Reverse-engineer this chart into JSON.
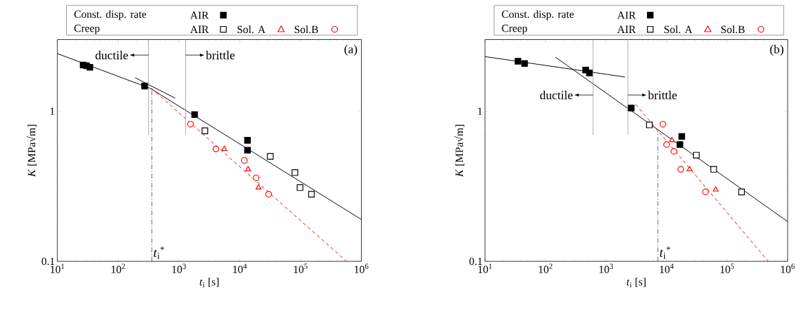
{
  "chart_data": [
    {
      "type": "scatter",
      "xlabel": "*t*$_{i}$ [s]",
      "ylabel": "*K* [MPa√m]",
      "log": "xy",
      "xlim": [
        10,
        1000000
      ],
      "ylim": [
        0.1,
        3
      ],
      "xticks": [
        {
          "value": 10,
          "label": "10$^{1}$"
        },
        {
          "value": 100,
          "label": "10$^{2}$"
        },
        {
          "value": 1000,
          "label": "10$^{3}$"
        },
        {
          "value": 10000,
          "label": "10$^{4}$"
        },
        {
          "value": 100000,
          "label": "10$^{5}$"
        },
        {
          "value": 1000000,
          "label": "10$^{6}$"
        }
      ],
      "yticks": [
        0.1,
        1
      ],
      "legend": "top",
      "annotations": [
        "Const. disp. rate",
        "Creep",
        "(a)"
      ],
      "ref_lines": [
        {
          "axis": "x",
          "value": 315,
          "label": "ductile",
          "color": "#999999",
          "line_style": "solid"
        },
        {
          "axis": "x",
          "value": 1290,
          "label": "brittle",
          "color": "#999999",
          "line_style": "solid"
        },
        {
          "axis": "x",
          "value": 358,
          "label": "*t*$_{i}$$^{*}$",
          "color": "#404040",
          "line_style": "dashdot"
        }
      ],
      "series": [
        {
          "name": "AIR",
          "color": "#000000",
          "marker": "square",
          "x": [
            26.5,
            30.2,
            34.3,
            272,
            1810,
            13400,
            13400
          ],
          "values": [
            2.03,
            2.01,
            1.96,
            1.47,
            0.95,
            0.64,
            0.55
          ]
        },
        {
          "name": "AIR",
          "color": "#000000",
          "marker": "square",
          "x": [
            2670,
            31800,
            80700,
            98000,
            151000
          ],
          "values": [
            0.74,
            0.5,
            0.39,
            0.31,
            0.28
          ]
        },
        {
          "name": "Sol. A",
          "color": "#ff0000",
          "marker": "triangle",
          "x": [
            5560,
            13700,
            20300
          ],
          "values": [
            0.56,
            0.41,
            0.31
          ]
        },
        {
          "name": "Sol.B",
          "color": "#ff0000",
          "marker": "circle",
          "x": [
            1550,
            4050,
            11900,
            18600,
            29800
          ],
          "values": [
            0.82,
            0.56,
            0.47,
            0.36,
            0.28
          ]
        },
        {
          "type": "line",
          "color": "#000000",
          "line_style": "solid",
          "x": [
            10,
            337,
            1000000
          ],
          "values": [
            2.42,
            1.42,
            0.19
          ]
        },
        {
          "type": "line",
          "color": "#000000",
          "line_style": "solid",
          "x": [
            191,
            871
          ],
          "values": [
            1.67,
            1.22
          ]
        },
        {
          "type": "line",
          "color": "#ff0000",
          "line_style": "dashed",
          "x": [
            352,
            570000
          ],
          "values": [
            1.42,
            0.1
          ]
        }
      ]
    },
    {
      "type": "scatter",
      "xlabel": "*t*$_{i}$ [s]",
      "ylabel": "*K* [MPa√m]",
      "log": "xy",
      "xlim": [
        10,
        1000000
      ],
      "ylim": [
        0.1,
        3
      ],
      "xticks": [
        {
          "value": 10,
          "label": "10$^{1}$"
        },
        {
          "value": 100,
          "label": "10$^{2}$"
        },
        {
          "value": 1000,
          "label": "10$^{3}$"
        },
        {
          "value": 10000,
          "label": "10$^{4}$"
        },
        {
          "value": 100000,
          "label": "10$^{5}$"
        },
        {
          "value": 1000000,
          "label": "10$^{6}$"
        }
      ],
      "yticks": [
        0.1,
        1
      ],
      "legend": "top",
      "annotations": [
        "Const. disp. rate",
        "Creep",
        "(b)"
      ],
      "ref_lines": [
        {
          "axis": "x",
          "value": 610,
          "label": "ductile",
          "color": "#999999",
          "line_style": "solid"
        },
        {
          "axis": "x",
          "value": 2290,
          "label": "brittle",
          "color": "#999999",
          "line_style": "solid"
        },
        {
          "axis": "x",
          "value": 7180,
          "label": "*t*$_{i}$$^{*}$",
          "color": "#404040",
          "line_style": "dashdot"
        }
      ],
      "series": [
        {
          "name": "AIR",
          "color": "#000000",
          "marker": "square",
          "x": [
            35,
            45,
            460,
            530,
            2600,
            17800,
            16600
          ],
          "values": [
            2.15,
            2.08,
            1.88,
            1.8,
            1.05,
            0.68,
            0.6
          ]
        },
        {
          "name": "AIR",
          "color": "#000000",
          "marker": "square",
          "x": [
            5200,
            31000,
            60000,
            173000
          ],
          "values": [
            0.81,
            0.51,
            0.41,
            0.29
          ]
        },
        {
          "name": "Sol. A",
          "color": "#ff0000",
          "marker": "triangle",
          "x": [
            12300,
            24000,
            65000
          ],
          "values": [
            0.64,
            0.41,
            0.3
          ]
        },
        {
          "name": "Sol.B",
          "color": "#ff0000",
          "marker": "circle",
          "x": [
            8700,
            10000,
            13200,
            17100,
            44000
          ],
          "values": [
            0.82,
            0.6,
            0.54,
            0.41,
            0.29
          ]
        },
        {
          "type": "line",
          "color": "#000000",
          "line_style": "solid",
          "x": [
            10,
            2050
          ],
          "values": [
            2.31,
            1.69
          ]
        },
        {
          "type": "line",
          "color": "#000000",
          "line_style": "solid",
          "x": [
            146,
            1000000
          ],
          "values": [
            2.29,
            0.184
          ]
        },
        {
          "type": "line",
          "color": "#ff0000",
          "line_style": "dashed",
          "x": [
            3080,
            478000
          ],
          "values": [
            1.11,
            0.1
          ]
        }
      ]
    }
  ]
}
